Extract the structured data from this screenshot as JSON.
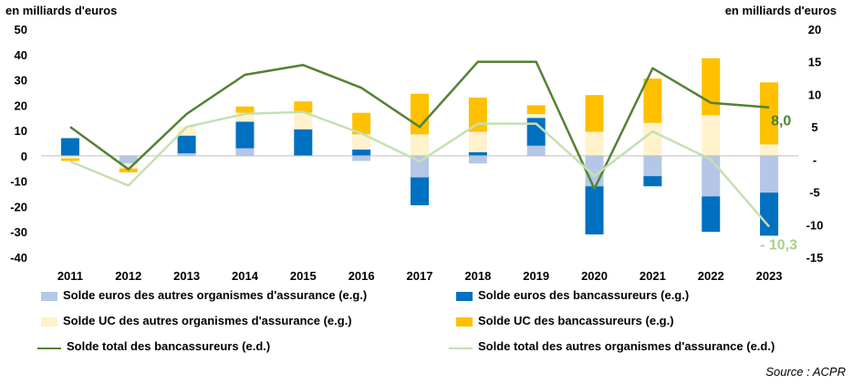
{
  "unit_left": "en milliards d'euros",
  "unit_right": "en milliards d'euros",
  "source": "Source : ACPR",
  "colors": {
    "euros_autres": "#b4c7e7",
    "euros_banc": "#0070c0",
    "uc_autres": "#fff2cc",
    "uc_banc": "#ffc000",
    "total_banc": "#548235",
    "total_autres": "#c5e0b4",
    "label_banc": "#548235",
    "label_autres": "#a9d18e"
  },
  "legend": [
    {
      "label": "Solde euros  des autres organismes d'assurance (e.g.)",
      "color": "#b4c7e7",
      "kind": "rect"
    },
    {
      "label": "Solde euros  des bancassureurs (e.g.)",
      "color": "#0070c0",
      "kind": "rect"
    },
    {
      "label": "Solde UC des autres organismes d'assurance (e.g.)",
      "color": "#fff2cc",
      "kind": "rect"
    },
    {
      "label": "Solde UC des bancassureurs (e.g.)",
      "color": "#ffc000",
      "kind": "rect"
    },
    {
      "label": "Solde total des bancassureurs (e.d.)",
      "color": "#548235",
      "kind": "line"
    },
    {
      "label": "Solde total des autres organismes d'assurance (e.d.)",
      "color": "#c5e0b4",
      "kind": "line"
    }
  ],
  "chart_data": {
    "type": "bar",
    "categories": [
      "2011",
      "2012",
      "2013",
      "2014",
      "2015",
      "2016",
      "2017",
      "2018",
      "2019",
      "2020",
      "2021",
      "2022",
      "2023"
    ],
    "ylim_left": [
      -40,
      50
    ],
    "yticks_left": [
      "-40",
      "-30",
      "-20",
      "-10",
      "0",
      "10",
      "20",
      "30",
      "40",
      "50"
    ],
    "ylim_right": [
      -15,
      20
    ],
    "yticks_right": [
      "-15",
      "-10",
      "-5",
      "-",
      "5",
      "10",
      "15",
      "20"
    ],
    "stacked_series": [
      {
        "name": "Solde euros  des autres organismes d'assurance (e.g.)",
        "color": "#b4c7e7",
        "values": [
          0,
          -3,
          1,
          3,
          0,
          -2,
          -8.5,
          -3,
          4,
          -12,
          -8,
          -16,
          -14.5
        ]
      },
      {
        "name": "Solde euros  des bancassureurs (e.g.)",
        "color": "#0070c0",
        "values": [
          7,
          0,
          7,
          10.5,
          10.5,
          2.5,
          -11,
          1.5,
          11,
          -19,
          -4,
          -14,
          -17
        ]
      },
      {
        "name": "Solde UC des autres organismes d'assurance (e.g.)",
        "color": "#fff2cc",
        "values": [
          -1,
          -2,
          3.5,
          3.5,
          6.5,
          6,
          8.5,
          8,
          1.5,
          9.5,
          13,
          16,
          4.5
        ]
      },
      {
        "name": "Solde UC des bancassureurs (e.g.)",
        "color": "#ffc000",
        "values": [
          -1,
          -1.5,
          0,
          2.5,
          4.5,
          8.5,
          16,
          13.5,
          3.5,
          14.5,
          17.5,
          22.5,
          24.5
        ]
      }
    ],
    "line_series": [
      {
        "name": "Solde total des bancassureurs (e.d.)",
        "color": "#548235",
        "values": [
          5,
          -1.5,
          7,
          13,
          14.5,
          11,
          5,
          15,
          15,
          -4.5,
          14,
          8.7,
          8.0
        ]
      },
      {
        "name": "Solde total des autres organismes d'assurance (e.d.)",
        "color": "#c5e0b4",
        "values": [
          -0.3,
          -4,
          5,
          7,
          7.3,
          4,
          -0.3,
          5.5,
          5.5,
          -2.5,
          4.3,
          0,
          -10.3
        ]
      }
    ],
    "annotations": [
      {
        "text": "8,0",
        "series": 0,
        "index": 12
      },
      {
        "text": "- 10,3",
        "series": 1,
        "index": 12
      }
    ]
  }
}
